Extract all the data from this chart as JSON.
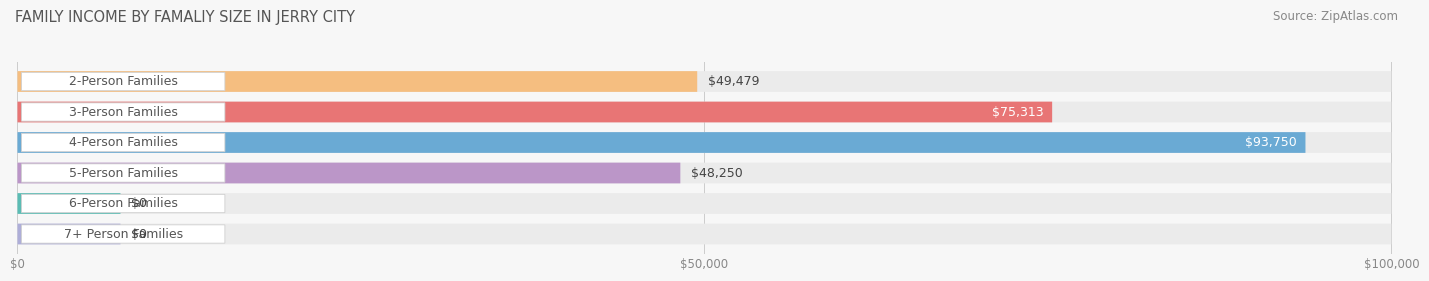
{
  "title": "FAMILY INCOME BY FAMALIY SIZE IN JERRY CITY",
  "source": "Source: ZipAtlas.com",
  "categories": [
    "2-Person Families",
    "3-Person Families",
    "4-Person Families",
    "5-Person Families",
    "6-Person Families",
    "7+ Person Families"
  ],
  "values": [
    49479,
    75313,
    93750,
    48250,
    0,
    0
  ],
  "bar_colors": [
    "#F5BE80",
    "#E87575",
    "#6AAAD4",
    "#BB96C8",
    "#5BBCB4",
    "#AEAED8"
  ],
  "bar_bg_color": "#ebebeb",
  "label_inside_color": [
    "#555555",
    "#ffffff",
    "#ffffff",
    "#555555",
    "#555555",
    "#555555"
  ],
  "xmax": 100000,
  "xticks": [
    0,
    50000,
    100000
  ],
  "xtick_labels": [
    "$0",
    "$50,000",
    "$100,000"
  ],
  "value_labels": [
    "$49,479",
    "$75,313",
    "$93,750",
    "$48,250",
    "$0",
    "$0"
  ],
  "background_color": "#f7f7f7",
  "title_fontsize": 10.5,
  "source_fontsize": 8.5,
  "label_fontsize": 9,
  "value_fontsize": 9,
  "tick_fontsize": 8.5
}
